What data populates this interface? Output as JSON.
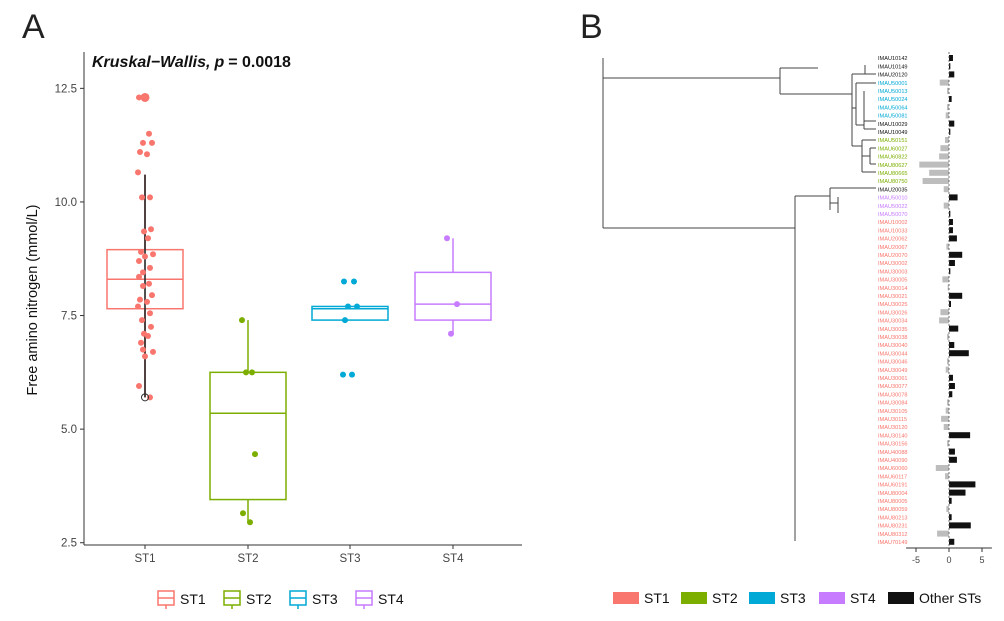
{
  "panel_a": {
    "label": "A",
    "stat_test": "Kruskal−Wallis,",
    "p_label": "p",
    "p_value": "= 0.0018",
    "legend": [
      {
        "name": "ST1",
        "color": "#F8766D"
      },
      {
        "name": "ST2",
        "color": "#7CAE00"
      },
      {
        "name": "ST3",
        "color": "#00A9D6"
      },
      {
        "name": "ST4",
        "color": "#C77CFF"
      }
    ]
  },
  "panel_b": {
    "label": "B",
    "x_ticks": [
      "-5",
      "0",
      "5"
    ],
    "legend": [
      {
        "name": "ST1",
        "color": "#F8766D"
      },
      {
        "name": "ST2",
        "color": "#7CAE00"
      },
      {
        "name": "ST3",
        "color": "#00A9D6"
      },
      {
        "name": "ST4",
        "color": "#C77CFF"
      },
      {
        "name": "Other STs",
        "color": "#111111"
      }
    ]
  },
  "chart_data": [
    {
      "type": "box",
      "ylabel": "Free amino nitrogen (mmol/L)",
      "ylim": [
        2.45,
        13.3
      ],
      "y_ticks": [
        2.5,
        5.0,
        7.5,
        10.0,
        12.5
      ],
      "categories": [
        "ST1",
        "ST2",
        "ST3",
        "ST4"
      ],
      "grid": false,
      "legend_position": "bottom",
      "boxes": [
        {
          "name": "ST1",
          "color": "#F8766D",
          "q1": 7.65,
          "median": 8.3,
          "q3": 8.95,
          "whisker_low": 5.7,
          "whisker_high": 10.6
        },
        {
          "name": "ST2",
          "color": "#7CAE00",
          "q1": 3.45,
          "median": 5.35,
          "q3": 6.25,
          "whisker_low": 2.95,
          "whisker_high": 7.4
        },
        {
          "name": "ST3",
          "color": "#00A9D6",
          "q1": 7.4,
          "median": 7.65,
          "q3": 7.7,
          "whisker_low": 7.4,
          "whisker_high": 7.7
        },
        {
          "name": "ST4",
          "color": "#C77CFF",
          "q1": 7.4,
          "median": 7.75,
          "q3": 8.45,
          "whisker_low": 7.1,
          "whisker_high": 9.2
        }
      ],
      "points": [
        {
          "group": "ST1",
          "values": [
            12.3,
            11.5,
            11.3,
            11.3,
            11.1,
            11.05,
            10.65,
            10.1,
            10.1,
            9.4,
            9.35,
            9.2,
            8.9,
            8.85,
            8.8,
            8.7,
            8.55,
            8.45,
            8.35,
            8.2,
            8.15,
            7.95,
            7.85,
            7.8,
            7.7,
            7.55,
            7.4,
            7.25,
            7.1,
            7.05,
            6.9,
            6.7,
            6.6,
            5.95,
            5.7,
            6.75
          ]
        },
        {
          "group": "ST2",
          "values": [
            7.4,
            6.25,
            6.25,
            4.45,
            3.15,
            2.95
          ]
        },
        {
          "group": "ST3",
          "values": [
            8.25,
            8.25,
            7.7,
            7.7,
            7.4,
            6.2,
            6.2
          ]
        },
        {
          "group": "ST4",
          "values": [
            9.2,
            7.75,
            7.1
          ]
        }
      ]
    },
    {
      "type": "bar",
      "orientation": "horizontal",
      "xlim": [
        -6.5,
        6.5
      ],
      "x_ticks": [
        -5,
        0,
        5
      ],
      "series_colors": {
        "Other STs": "#111111",
        "ST1": "#F8766D",
        "ST2": "#7CAE00",
        "ST3": "#00A9D6",
        "ST4": "#C77CFF"
      },
      "rows": [
        {
          "label": "IMAU10142",
          "group": "Other STs",
          "value": 0.6
        },
        {
          "label": "IMAU10149",
          "group": "Other STs",
          "value": 0.2
        },
        {
          "label": "IMAU20120",
          "group": "Other STs",
          "value": 0.8
        },
        {
          "label": "IMAU50001",
          "group": "ST3",
          "value": -1.4
        },
        {
          "label": "IMAU50013",
          "group": "ST3",
          "value": -0.3
        },
        {
          "label": "IMAU50024",
          "group": "ST3",
          "value": 0.4
        },
        {
          "label": "IMAU50064",
          "group": "ST3",
          "value": -0.3
        },
        {
          "label": "IMAU50081",
          "group": "ST3",
          "value": -0.5
        },
        {
          "label": "IMAU10029",
          "group": "Other STs",
          "value": 0.8
        },
        {
          "label": "IMAU10049",
          "group": "Other STs",
          "value": 0.2
        },
        {
          "label": "IMAU50151",
          "group": "ST2",
          "value": -0.6
        },
        {
          "label": "IMAU60027",
          "group": "ST2",
          "value": -1.3
        },
        {
          "label": "IMAU60822",
          "group": "ST2",
          "value": -1.5
        },
        {
          "label": "IMAU80627",
          "group": "ST2",
          "value": -4.5
        },
        {
          "label": "IMAU80665",
          "group": "ST2",
          "value": -3.0
        },
        {
          "label": "IMAU80750",
          "group": "ST2",
          "value": -4.0
        },
        {
          "label": "IMAU20035",
          "group": "Other STs",
          "value": -0.8
        },
        {
          "label": "IMAU50010",
          "group": "ST4",
          "value": 1.3
        },
        {
          "label": "IMAU50022",
          "group": "ST4",
          "value": -0.8
        },
        {
          "label": "IMAU50070",
          "group": "ST4",
          "value": 0.2
        },
        {
          "label": "IMAU10002",
          "group": "ST1",
          "value": 0.6
        },
        {
          "label": "IMAU10033",
          "group": "ST1",
          "value": 0.6
        },
        {
          "label": "IMAU20062",
          "group": "ST1",
          "value": 1.2
        },
        {
          "label": "IMAU20067",
          "group": "ST1",
          "value": -0.4
        },
        {
          "label": "IMAU20070",
          "group": "ST1",
          "value": 2.0
        },
        {
          "label": "IMAU30002",
          "group": "ST1",
          "value": 0.9
        },
        {
          "label": "IMAU30003",
          "group": "ST1",
          "value": 0.2
        },
        {
          "label": "IMAU30005",
          "group": "ST1",
          "value": -1.0
        },
        {
          "label": "IMAU30014",
          "group": "ST1",
          "value": -0.2
        },
        {
          "label": "IMAU30021",
          "group": "ST1",
          "value": 2.0
        },
        {
          "label": "IMAU30025",
          "group": "ST1",
          "value": 0.3
        },
        {
          "label": "IMAU30026",
          "group": "ST1",
          "value": -1.3
        },
        {
          "label": "IMAU30034",
          "group": "ST1",
          "value": -1.5
        },
        {
          "label": "IMAU30035",
          "group": "ST1",
          "value": 1.4
        },
        {
          "label": "IMAU30038",
          "group": "ST1",
          "value": -0.3
        },
        {
          "label": "IMAU30040",
          "group": "ST1",
          "value": 0.8
        },
        {
          "label": "IMAU30044",
          "group": "ST1",
          "value": 3.0
        },
        {
          "label": "IMAU30046",
          "group": "ST1",
          "value": -0.3
        },
        {
          "label": "IMAU30049",
          "group": "ST1",
          "value": -0.5
        },
        {
          "label": "IMAU30061",
          "group": "ST1",
          "value": 0.6
        },
        {
          "label": "IMAU30077",
          "group": "ST1",
          "value": 0.9
        },
        {
          "label": "IMAU30078",
          "group": "ST1",
          "value": 0.5
        },
        {
          "label": "IMAU30084",
          "group": "ST1",
          "value": -0.3
        },
        {
          "label": "IMAU30105",
          "group": "ST1",
          "value": -0.5
        },
        {
          "label": "IMAU30115",
          "group": "ST1",
          "value": -1.2
        },
        {
          "label": "IMAU30120",
          "group": "ST1",
          "value": -0.8
        },
        {
          "label": "IMAU30140",
          "group": "ST1",
          "value": 3.2
        },
        {
          "label": "IMAU30156",
          "group": "ST1",
          "value": -0.3
        },
        {
          "label": "IMAU40088",
          "group": "ST1",
          "value": 0.9
        },
        {
          "label": "IMAU40090",
          "group": "ST1",
          "value": 1.2
        },
        {
          "label": "IMAU60060",
          "group": "ST1",
          "value": -2.0
        },
        {
          "label": "IMAU60117",
          "group": "ST1",
          "value": -0.6
        },
        {
          "label": "IMAU60191",
          "group": "ST1",
          "value": 4.0
        },
        {
          "label": "IMAU80004",
          "group": "ST1",
          "value": 2.5
        },
        {
          "label": "IMAU80005",
          "group": "ST1",
          "value": 0.4
        },
        {
          "label": "IMAU80059",
          "group": "ST1",
          "value": -0.4
        },
        {
          "label": "IMAU80213",
          "group": "ST1",
          "value": 0.4
        },
        {
          "label": "IMAU80231",
          "group": "ST1",
          "value": 3.3
        },
        {
          "label": "IMAU80312",
          "group": "ST1",
          "value": -1.8
        },
        {
          "label": "IMAU70149",
          "group": "ST1",
          "value": 0.8
        }
      ]
    }
  ]
}
